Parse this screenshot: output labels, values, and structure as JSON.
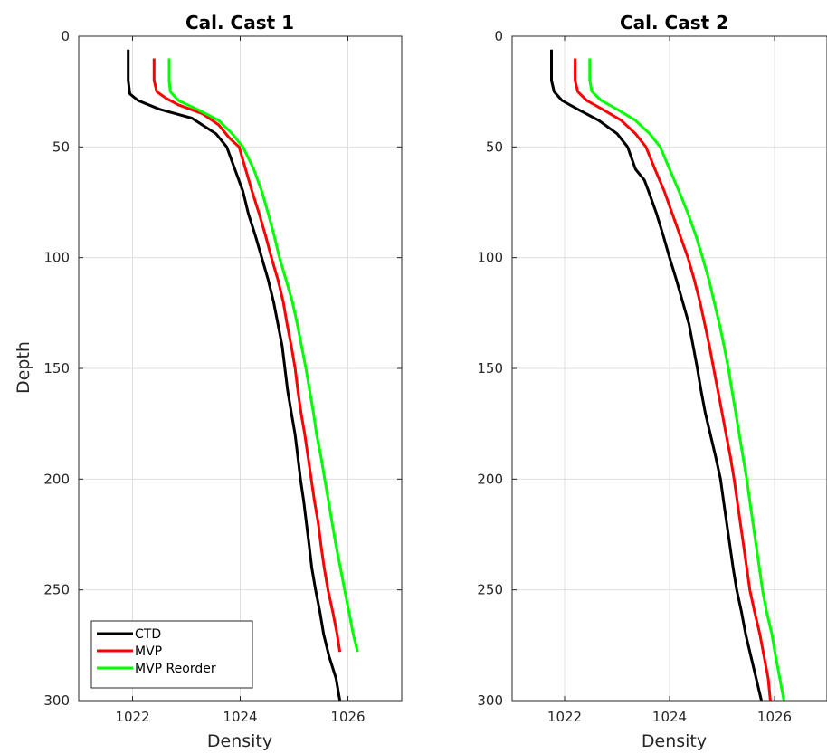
{
  "chart_data": [
    {
      "type": "line",
      "title": "Cal. Cast 1",
      "xlabel": "Density",
      "ylabel": "Depth",
      "xlim": [
        1021,
        1027
      ],
      "ylim": [
        0,
        300
      ],
      "y_reversed": true,
      "xticks": [
        1022,
        1024,
        1026
      ],
      "yticks": [
        0,
        50,
        100,
        150,
        200,
        250,
        300
      ],
      "xtick_labels": [
        "1022",
        "1024",
        "1026"
      ],
      "ytick_labels": [
        "0",
        "50",
        "100",
        "150",
        "200",
        "250",
        "300"
      ],
      "grid": true,
      "legend": {
        "position": "bottom-left",
        "entries": [
          "CTD",
          "MVP",
          "MVP Reorder"
        ]
      },
      "series": [
        {
          "name": "CTD",
          "color": "#000000",
          "points": [
            [
              1021.92,
              6
            ],
            [
              1021.92,
              20
            ],
            [
              1021.95,
              26
            ],
            [
              1022.1,
              29
            ],
            [
              1022.5,
              33
            ],
            [
              1023.1,
              37
            ],
            [
              1023.55,
              44
            ],
            [
              1023.75,
              50
            ],
            [
              1023.9,
              60
            ],
            [
              1024.05,
              70
            ],
            [
              1024.15,
              80
            ],
            [
              1024.28,
              90
            ],
            [
              1024.4,
              100
            ],
            [
              1024.52,
              110
            ],
            [
              1024.62,
              120
            ],
            [
              1024.7,
              130
            ],
            [
              1024.78,
              140
            ],
            [
              1024.83,
              150
            ],
            [
              1024.88,
              160
            ],
            [
              1024.95,
              170
            ],
            [
              1025.02,
              180
            ],
            [
              1025.07,
              190
            ],
            [
              1025.12,
              200
            ],
            [
              1025.18,
              210
            ],
            [
              1025.23,
              220
            ],
            [
              1025.28,
              230
            ],
            [
              1025.33,
              240
            ],
            [
              1025.4,
              250
            ],
            [
              1025.48,
              260
            ],
            [
              1025.55,
              270
            ],
            [
              1025.65,
              280
            ],
            [
              1025.78,
              290
            ],
            [
              1025.85,
              300
            ]
          ]
        },
        {
          "name": "MVP",
          "color": "#ff0000",
          "points": [
            [
              1022.4,
              10
            ],
            [
              1022.4,
              20
            ],
            [
              1022.45,
              25
            ],
            [
              1022.62,
              28
            ],
            [
              1022.85,
              31
            ],
            [
              1023.3,
              35
            ],
            [
              1023.6,
              40
            ],
            [
              1023.8,
              46
            ],
            [
              1023.98,
              50
            ],
            [
              1024.1,
              60
            ],
            [
              1024.22,
              70
            ],
            [
              1024.35,
              80
            ],
            [
              1024.47,
              90
            ],
            [
              1024.58,
              100
            ],
            [
              1024.7,
              110
            ],
            [
              1024.8,
              120
            ],
            [
              1024.87,
              130
            ],
            [
              1024.95,
              140
            ],
            [
              1025.02,
              150
            ],
            [
              1025.07,
              160
            ],
            [
              1025.13,
              170
            ],
            [
              1025.2,
              180
            ],
            [
              1025.26,
              190
            ],
            [
              1025.32,
              200
            ],
            [
              1025.38,
              210
            ],
            [
              1025.45,
              220
            ],
            [
              1025.5,
              230
            ],
            [
              1025.56,
              240
            ],
            [
              1025.63,
              250
            ],
            [
              1025.72,
              260
            ],
            [
              1025.8,
              270
            ],
            [
              1025.85,
              278
            ]
          ]
        },
        {
          "name": "MVP Reorder",
          "color": "#00ff00",
          "points": [
            [
              1022.68,
              10
            ],
            [
              1022.68,
              20
            ],
            [
              1022.7,
              25
            ],
            [
              1022.85,
              29
            ],
            [
              1023.2,
              33
            ],
            [
              1023.6,
              38
            ],
            [
              1023.85,
              44
            ],
            [
              1024.05,
              50
            ],
            [
              1024.25,
              60
            ],
            [
              1024.4,
              70
            ],
            [
              1024.52,
              80
            ],
            [
              1024.63,
              90
            ],
            [
              1024.73,
              100
            ],
            [
              1024.85,
              110
            ],
            [
              1024.97,
              120
            ],
            [
              1025.06,
              130
            ],
            [
              1025.14,
              140
            ],
            [
              1025.22,
              150
            ],
            [
              1025.29,
              160
            ],
            [
              1025.36,
              170
            ],
            [
              1025.42,
              180
            ],
            [
              1025.5,
              190
            ],
            [
              1025.57,
              200
            ],
            [
              1025.64,
              210
            ],
            [
              1025.71,
              220
            ],
            [
              1025.78,
              230
            ],
            [
              1025.86,
              240
            ],
            [
              1025.94,
              250
            ],
            [
              1026.02,
              260
            ],
            [
              1026.1,
              270
            ],
            [
              1026.18,
              278
            ]
          ]
        }
      ]
    },
    {
      "type": "line",
      "title": "Cal. Cast 2",
      "xlabel": "Density",
      "ylabel": "",
      "xlim": [
        1021,
        1027
      ],
      "ylim": [
        0,
        300
      ],
      "y_reversed": true,
      "xticks": [
        1022,
        1024,
        1026
      ],
      "yticks": [
        0,
        50,
        100,
        150,
        200,
        250,
        300
      ],
      "xtick_labels": [
        "1022",
        "1024",
        "1026"
      ],
      "ytick_labels": [
        "0",
        "50",
        "100",
        "150",
        "200",
        "250",
        "300"
      ],
      "grid": true,
      "series": [
        {
          "name": "CTD",
          "color": "#000000",
          "points": [
            [
              1021.75,
              6
            ],
            [
              1021.75,
              20
            ],
            [
              1021.8,
              25
            ],
            [
              1021.95,
              29
            ],
            [
              1022.25,
              33
            ],
            [
              1022.65,
              38
            ],
            [
              1023.0,
              44
            ],
            [
              1023.2,
              50
            ],
            [
              1023.35,
              60
            ],
            [
              1023.52,
              65
            ],
            [
              1023.6,
              70
            ],
            [
              1023.75,
              80
            ],
            [
              1023.88,
              90
            ],
            [
              1024.0,
              100
            ],
            [
              1024.13,
              110
            ],
            [
              1024.25,
              120
            ],
            [
              1024.37,
              130
            ],
            [
              1024.45,
              140
            ],
            [
              1024.53,
              150
            ],
            [
              1024.6,
              160
            ],
            [
              1024.68,
              170
            ],
            [
              1024.78,
              180
            ],
            [
              1024.88,
              190
            ],
            [
              1024.97,
              200
            ],
            [
              1025.03,
              210
            ],
            [
              1025.09,
              220
            ],
            [
              1025.15,
              230
            ],
            [
              1025.21,
              240
            ],
            [
              1025.28,
              250
            ],
            [
              1025.37,
              260
            ],
            [
              1025.45,
              270
            ],
            [
              1025.55,
              280
            ],
            [
              1025.65,
              290
            ],
            [
              1025.75,
              300
            ]
          ]
        },
        {
          "name": "MVP",
          "color": "#ff0000",
          "points": [
            [
              1022.2,
              10
            ],
            [
              1022.2,
              20
            ],
            [
              1022.25,
              25
            ],
            [
              1022.42,
              29
            ],
            [
              1022.72,
              33
            ],
            [
              1023.08,
              38
            ],
            [
              1023.35,
              44
            ],
            [
              1023.55,
              50
            ],
            [
              1023.72,
              60
            ],
            [
              1023.9,
              70
            ],
            [
              1024.05,
              80
            ],
            [
              1024.2,
              90
            ],
            [
              1024.35,
              100
            ],
            [
              1024.47,
              110
            ],
            [
              1024.58,
              120
            ],
            [
              1024.67,
              130
            ],
            [
              1024.76,
              140
            ],
            [
              1024.84,
              150
            ],
            [
              1024.92,
              160
            ],
            [
              1025.0,
              170
            ],
            [
              1025.08,
              180
            ],
            [
              1025.16,
              190
            ],
            [
              1025.23,
              200
            ],
            [
              1025.29,
              210
            ],
            [
              1025.35,
              220
            ],
            [
              1025.41,
              230
            ],
            [
              1025.47,
              240
            ],
            [
              1025.53,
              250
            ],
            [
              1025.62,
              260
            ],
            [
              1025.72,
              270
            ],
            [
              1025.8,
              280
            ],
            [
              1025.88,
              290
            ],
            [
              1025.92,
              300
            ]
          ]
        },
        {
          "name": "MVP Reorder",
          "color": "#00ff00",
          "points": [
            [
              1022.48,
              10
            ],
            [
              1022.48,
              20
            ],
            [
              1022.52,
              25
            ],
            [
              1022.7,
              29
            ],
            [
              1023.0,
              33
            ],
            [
              1023.35,
              38
            ],
            [
              1023.62,
              44
            ],
            [
              1023.82,
              50
            ],
            [
              1024.0,
              60
            ],
            [
              1024.18,
              70
            ],
            [
              1024.35,
              80
            ],
            [
              1024.5,
              90
            ],
            [
              1024.63,
              100
            ],
            [
              1024.75,
              110
            ],
            [
              1024.85,
              120
            ],
            [
              1024.95,
              130
            ],
            [
              1025.04,
              140
            ],
            [
              1025.12,
              150
            ],
            [
              1025.19,
              160
            ],
            [
              1025.26,
              170
            ],
            [
              1025.33,
              180
            ],
            [
              1025.4,
              190
            ],
            [
              1025.47,
              200
            ],
            [
              1025.53,
              210
            ],
            [
              1025.59,
              220
            ],
            [
              1025.65,
              230
            ],
            [
              1025.71,
              240
            ],
            [
              1025.77,
              250
            ],
            [
              1025.85,
              260
            ],
            [
              1025.95,
              270
            ],
            [
              1026.02,
              280
            ],
            [
              1026.1,
              290
            ],
            [
              1026.18,
              300
            ]
          ]
        }
      ]
    }
  ]
}
